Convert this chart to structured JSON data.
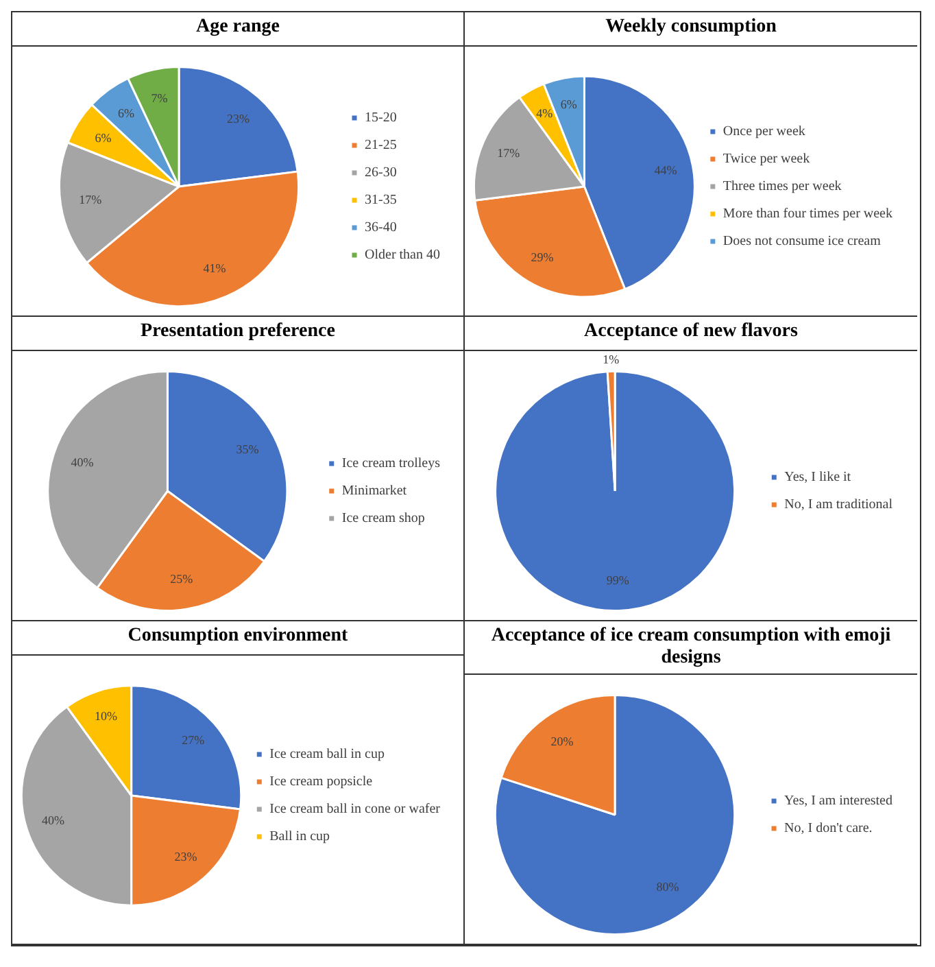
{
  "chart_data": [
    {
      "type": "pie",
      "title": "Age range",
      "categories": [
        "15-20",
        "21-25",
        "26-30",
        "31-35",
        "36-40",
        "Older than 40"
      ],
      "values": [
        23,
        41,
        17,
        6,
        6,
        7
      ],
      "colors": [
        "#4472c4",
        "#ed7d31",
        "#a5a5a5",
        "#ffc000",
        "#5b9bd5",
        "#70ad47"
      ],
      "value_labels": [
        "23%",
        "41%",
        "17%",
        "6%",
        "6%",
        "7%"
      ],
      "legend": "right"
    },
    {
      "type": "pie",
      "title": "Weekly consumption",
      "categories": [
        "Once per week",
        "Twice per week",
        "Three times per week",
        "More than four times per week",
        "Does not consume ice cream"
      ],
      "values": [
        44,
        29,
        17,
        4,
        6
      ],
      "colors": [
        "#4472c4",
        "#ed7d31",
        "#a5a5a5",
        "#ffc000",
        "#5b9bd5"
      ],
      "value_labels": [
        "44%",
        "29%",
        "17%",
        "4%",
        "6%"
      ],
      "legend": "right"
    },
    {
      "type": "pie",
      "title": "Presentation preference",
      "categories": [
        "Ice cream trolleys",
        "Minimarket",
        "Ice cream shop"
      ],
      "values": [
        35,
        25,
        40
      ],
      "colors": [
        "#4472c4",
        "#ed7d31",
        "#a5a5a5"
      ],
      "value_labels": [
        "35%",
        "25%",
        "40%"
      ],
      "legend": "right"
    },
    {
      "type": "pie",
      "title": "Acceptance of new flavors",
      "categories": [
        "Yes, I like it",
        "No, I am traditional"
      ],
      "values": [
        99,
        1
      ],
      "colors": [
        "#4472c4",
        "#ed7d31"
      ],
      "value_labels": [
        "99%",
        "1%"
      ],
      "legend": "right"
    },
    {
      "type": "pie",
      "title": "Consumption environment",
      "categories": [
        "Ice cream ball in cup",
        "Ice cream popsicle",
        "Ice cream ball in cone or wafer",
        "Ball in cup"
      ],
      "values": [
        27,
        23,
        40,
        10
      ],
      "colors": [
        "#4472c4",
        "#ed7d31",
        "#a5a5a5",
        "#ffc000"
      ],
      "value_labels": [
        "27%",
        "23%",
        "40%",
        "10%"
      ],
      "legend": "right"
    },
    {
      "type": "pie",
      "title": "Acceptance of ice cream consumption with emoji designs",
      "categories": [
        "Yes, I am interested",
        "No, I don't care."
      ],
      "values": [
        80,
        20
      ],
      "colors": [
        "#4472c4",
        "#ed7d31"
      ],
      "value_labels": [
        "80%",
        "20%"
      ],
      "legend": "right"
    }
  ]
}
